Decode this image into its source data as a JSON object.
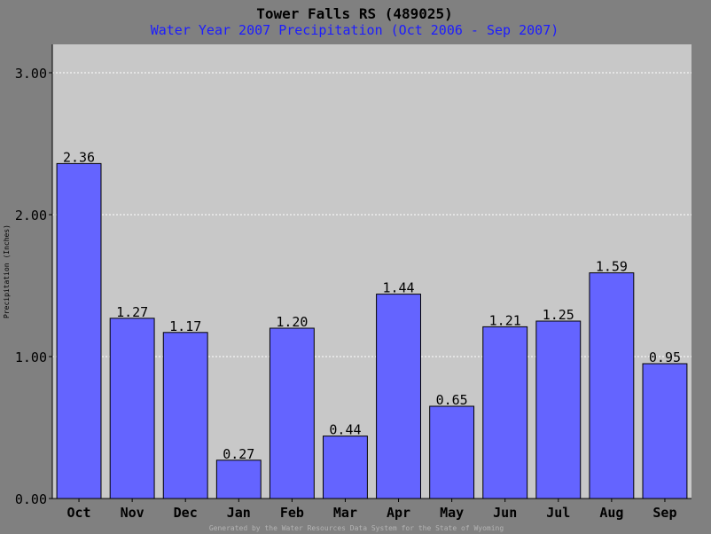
{
  "chart_data": {
    "type": "bar",
    "title": "Tower Falls RS (489025)",
    "subtitle": "Water Year 2007 Precipitation (Oct 2006 - Sep 2007)",
    "xlabel": "",
    "ylabel": "Precipitation (Inches)",
    "categories": [
      "Oct",
      "Nov",
      "Dec",
      "Jan",
      "Feb",
      "Mar",
      "Apr",
      "May",
      "Jun",
      "Jul",
      "Aug",
      "Sep"
    ],
    "values": [
      2.36,
      1.27,
      1.17,
      0.27,
      1.2,
      0.44,
      1.44,
      0.65,
      1.21,
      1.25,
      1.59,
      0.95
    ],
    "value_labels": [
      "2.36",
      "1.27",
      "1.17",
      "0.27",
      "1.20",
      "0.44",
      "1.44",
      "0.65",
      "1.21",
      "1.25",
      "1.59",
      "0.95"
    ],
    "ylim": [
      0,
      3.2
    ],
    "yticks": [
      0,
      1,
      2,
      3
    ],
    "ytick_labels": [
      "0.00",
      "1.00",
      "2.00",
      "3.00"
    ],
    "grid": true,
    "footer": "Generated by the Water Resources Data System for the State of Wyoming",
    "colors": {
      "background": "#808080",
      "plot": "#c8c8c8",
      "bar": "#6464ff",
      "title": "#000000",
      "subtitle": "#1c1cff",
      "footer": "#b4b4b4"
    }
  }
}
